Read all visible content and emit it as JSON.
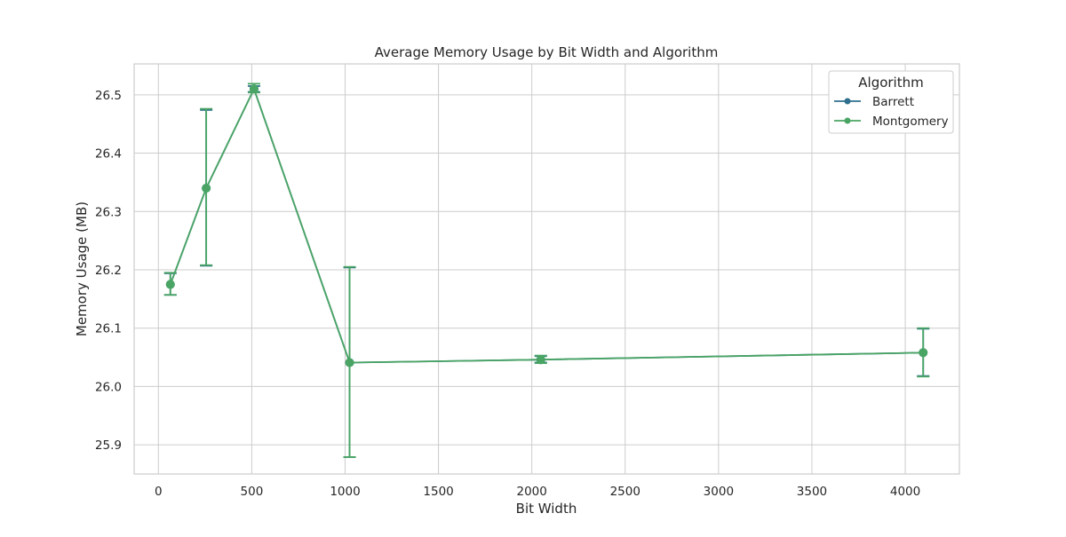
{
  "chart_data": {
    "type": "line",
    "title": "Average Memory Usage by Bit Width and Algorithm",
    "xlabel": "Bit Width",
    "ylabel": "Memory Usage (MB)",
    "xlim": [
      -130,
      4290
    ],
    "ylim": [
      25.85,
      26.553
    ],
    "x_ticks": [
      0,
      500,
      1000,
      1500,
      2000,
      2500,
      3000,
      3500,
      4000
    ],
    "y_ticks": [
      25.9,
      26.0,
      26.1,
      26.2,
      26.3,
      26.4,
      26.5
    ],
    "grid": true,
    "legend": {
      "title": "Algorithm",
      "position": "top-right"
    },
    "x": [
      64,
      256,
      512,
      1024,
      2048,
      4096
    ],
    "series": [
      {
        "name": "Barrett",
        "color": "#2e6f8e",
        "values": [
          26.175,
          26.34,
          26.51,
          26.041,
          26.046,
          26.058
        ],
        "error_low": [
          26.157,
          26.207,
          26.505,
          25.879,
          26.041,
          26.018
        ],
        "error_high": [
          26.194,
          26.474,
          26.515,
          26.204,
          26.052,
          26.099
        ]
      },
      {
        "name": "Montgomery",
        "color": "#4aa564",
        "values": [
          26.175,
          26.34,
          26.51,
          26.041,
          26.046,
          26.058
        ],
        "error_low": [
          26.157,
          26.208,
          26.504,
          25.879,
          26.04,
          26.017
        ],
        "error_high": [
          26.195,
          26.476,
          26.519,
          26.205,
          26.053,
          26.1
        ]
      }
    ]
  }
}
